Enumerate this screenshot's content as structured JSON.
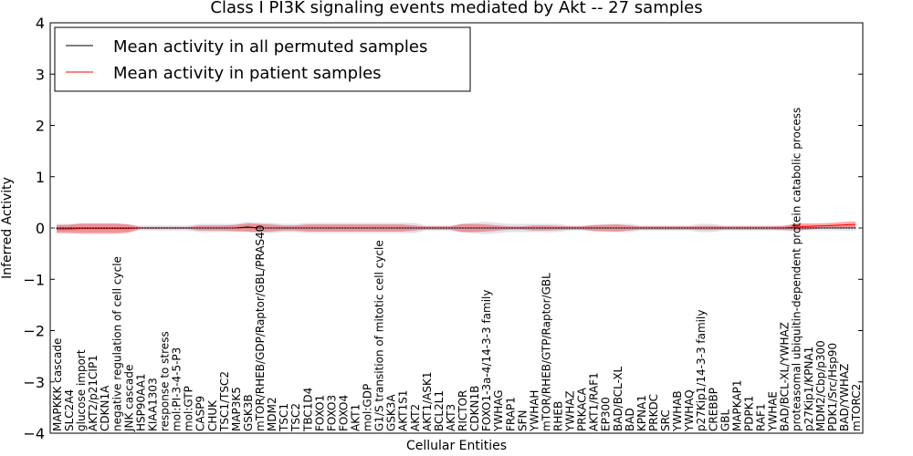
{
  "chart_data": {
    "type": "line",
    "title": "Class I PI3K signaling events mediated by Akt -- 27 samples",
    "xlabel": "Cellular Entities",
    "ylabel": "Inferred Activity",
    "ylim": [
      -4,
      4
    ],
    "yticks": [
      -4,
      -3,
      -2,
      -1,
      0,
      1,
      2,
      3,
      4
    ],
    "yticklabels": [
      "−4",
      "−3",
      "−2",
      "−1",
      "0",
      "1",
      "2",
      "3",
      "4"
    ],
    "legend": {
      "placement": "top-left",
      "entries": [
        {
          "label": "Mean activity in all permuted samples",
          "color": "#000000"
        },
        {
          "label": "Mean activity in patient samples",
          "color": "#ff0000"
        }
      ]
    },
    "categories": [
      "MAPKKK cascade",
      "SLC2A4",
      "glucose import",
      "AKT2/p21CIP1",
      "CDKN1A",
      "negative regulation of cell cycle",
      "JNK cascade",
      "HSP90AA1",
      "KIAA1303",
      "response to stress",
      "mol:PI-3-4-5-P3",
      "mol:GTP",
      "CASP9",
      "CHUK",
      "TSC1/TSC2",
      "MAP3K5",
      "GSK3B",
      "mTOR/RHEB/GDP/Raptor/GBL/PRAS40",
      "MDM2",
      "TSC1",
      "TSC2",
      "TBC1D4",
      "FOXO1",
      "FOXO3",
      "FOXO4",
      "AKT1",
      "mol:GDP",
      "G1/S transition of mitotic cell cycle",
      "GSK3A",
      "AKT1S1",
      "AKT2",
      "AKT1/ASK1",
      "BCL2L1",
      "AKT3",
      "RICTOR",
      "CDKN1B",
      "FOXO1-3a-4/14-3-3 family",
      "YWHAG",
      "FRAP1",
      "SFN",
      "YWHAH",
      "mTOR/RHEB/GTP/Raptor/GBL",
      "RHEB",
      "YWHAZ",
      "PRKACA",
      "AKT1/RAF1",
      "EP300",
      "BAD/BCL-XL",
      "BAD",
      "KPNA1",
      "PRKDC",
      "SRC",
      "YWHAB",
      "YWHAQ",
      "p27Kip1/14-3-3 family",
      "CREBBP",
      "GBL",
      "MAPKAP1",
      "PDPK1",
      "RAF1",
      "YWHAE",
      "BAD/BCL-XL/YWHAZ",
      "proteasomal ubiquitin-dependent protein catabolic process",
      "p27Kip1/KPNA1",
      "MDM2/Cbp/p300",
      "PDK1/Src/Hsp90",
      "BAD/YWHAZ",
      "mTORC2"
    ],
    "series": [
      {
        "name": "Mean activity in all permuted samples",
        "color": "#000000",
        "values": [
          0,
          0,
          0,
          0,
          0,
          0,
          0,
          0,
          0,
          0,
          0,
          0,
          0,
          0,
          0,
          0,
          0.02,
          0,
          0,
          0,
          0,
          0,
          0,
          0,
          0,
          0,
          0,
          0,
          0,
          0,
          0,
          0,
          0,
          0,
          0,
          0,
          0,
          0,
          0,
          0,
          0,
          0,
          0,
          0,
          0,
          0,
          0,
          0,
          0,
          0,
          0,
          0,
          0,
          0,
          0,
          0,
          0,
          0,
          0,
          0,
          0,
          0,
          0,
          0,
          0,
          0,
          0,
          0
        ],
        "band": [
          0.08,
          0.08,
          0.08,
          0.08,
          0.08,
          0.08,
          0.08,
          0.05,
          0.05,
          0.05,
          0.05,
          0.05,
          0.08,
          0.08,
          0.08,
          0.08,
          0.1,
          0.1,
          0.1,
          0.08,
          0.08,
          0.1,
          0.1,
          0.1,
          0.1,
          0.1,
          0.1,
          0.1,
          0.1,
          0.1,
          0.1,
          0.05,
          0.05,
          0.05,
          0.08,
          0.1,
          0.12,
          0.1,
          0.08,
          0.08,
          0.08,
          0.08,
          0.08,
          0.05,
          0.05,
          0.05,
          0.08,
          0.08,
          0.08,
          0.05,
          0.05,
          0.05,
          0.05,
          0.05,
          0.08,
          0.08,
          0.05,
          0.05,
          0.05,
          0.05,
          0.05,
          0.05,
          0.05,
          0.05,
          0.05,
          0.05,
          0.05,
          0.05
        ]
      },
      {
        "name": "Mean activity in patient samples",
        "color": "#ff0000",
        "values": [
          -0.02,
          -0.02,
          -0.01,
          -0.01,
          -0.01,
          -0.01,
          -0.01,
          0,
          0,
          0,
          0,
          0,
          0,
          0,
          0,
          0,
          0.01,
          0,
          0,
          0,
          0,
          0,
          0,
          0,
          0,
          0,
          0,
          0,
          0,
          0,
          0,
          0,
          0,
          0,
          0,
          0,
          0,
          0,
          0,
          0,
          0,
          0,
          0,
          0,
          0,
          0,
          0,
          0,
          0,
          0,
          0,
          0,
          0,
          0,
          0,
          0,
          0,
          0,
          0,
          0,
          0,
          0,
          0.02,
          0.03,
          0.04,
          0.05,
          0.06,
          0.07
        ],
        "band": [
          0.08,
          0.08,
          0.1,
          0.1,
          0.1,
          0.1,
          0.08,
          0.02,
          0.02,
          0.02,
          0.02,
          0.02,
          0.05,
          0.05,
          0.05,
          0.06,
          0.08,
          0.08,
          0.07,
          0.05,
          0.05,
          0.07,
          0.07,
          0.07,
          0.07,
          0.07,
          0.07,
          0.07,
          0.07,
          0.07,
          0.05,
          0.03,
          0.03,
          0.03,
          0.08,
          0.08,
          0.07,
          0.05,
          0.03,
          0.03,
          0.05,
          0.05,
          0.04,
          0.03,
          0.03,
          0.06,
          0.06,
          0.07,
          0.05,
          0.03,
          0.03,
          0.03,
          0.03,
          0.03,
          0.04,
          0.04,
          0.03,
          0.03,
          0.03,
          0.03,
          0.03,
          0.04,
          0.07,
          0.06,
          0.05,
          0.05,
          0.06,
          0.06
        ]
      }
    ]
  }
}
